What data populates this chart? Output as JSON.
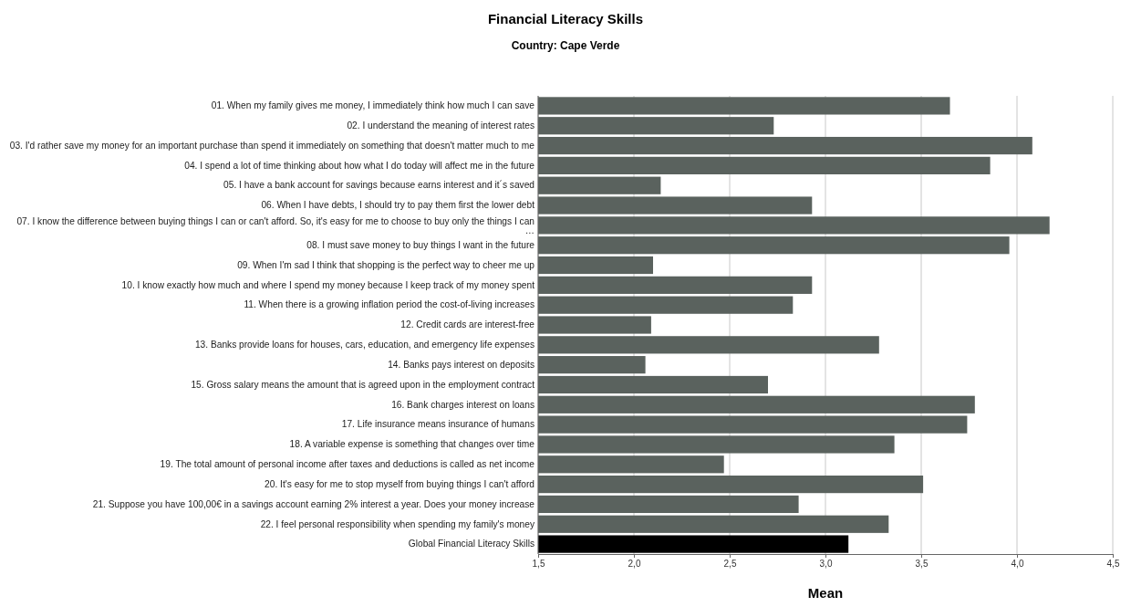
{
  "chart_data": {
    "type": "bar",
    "orientation": "horizontal",
    "title": "Financial Literacy Skills",
    "subtitle": "Country: Cape Verde",
    "xlabel": "Mean",
    "categories": [
      "01. When my family gives me money, I immediately think how much I can save",
      "02. I understand the meaning of interest rates",
      "03. I'd rather save my money for an important purchase than spend it immediately on something that doesn't matter much to me",
      "04. I spend a lot of time thinking about how what I do today will affect me in the future",
      "05. I have a bank account for savings because earns interest and it´s saved",
      "06. When I have debts, I should try to pay them first the lower debt",
      "07. I know the difference between buying things I can or can't afford. So, it's easy for me to choose to buy only the things I can …",
      "08. I must save money to buy things I want in the future",
      "09. When I'm sad I think that shopping is the perfect way to cheer me up",
      "10. I know exactly how much and where I spend my money because I keep track of my money spent",
      "11. When there is a growing inflation period the cost-of-living increases",
      "12. Credit cards are interest-free",
      "13. Banks provide loans for houses, cars, education, and emergency life expenses",
      "14. Banks pays interest on deposits",
      "15. Gross salary means the amount that is agreed upon in the employment contract",
      "16. Bank charges interest on loans",
      "17. Life insurance means insurance of humans",
      "18. A variable expense is something that changes over time",
      "19. The total amount of personal income after taxes and deductions is called as net income",
      "20. It's easy for me to stop myself from buying things I can't afford",
      "21. Suppose you have 100,00€ in a savings account earning 2% interest a year. Does your money increase",
      "22. I feel personal responsibility when spending my family's money",
      "Global Financial Literacy Skills"
    ],
    "values": [
      3.65,
      2.73,
      4.08,
      3.86,
      2.14,
      2.93,
      4.17,
      3.96,
      2.1,
      2.93,
      2.83,
      2.09,
      3.28,
      2.06,
      2.7,
      3.78,
      3.74,
      3.36,
      2.47,
      3.51,
      2.86,
      3.33,
      3.12
    ],
    "colors": [
      "#5a625e",
      "#5a625e",
      "#5a625e",
      "#5a625e",
      "#5a625e",
      "#5a625e",
      "#5a625e",
      "#5a625e",
      "#5a625e",
      "#5a625e",
      "#5a625e",
      "#5a625e",
      "#5a625e",
      "#5a625e",
      "#5a625e",
      "#5a625e",
      "#5a625e",
      "#5a625e",
      "#5a625e",
      "#5a625e",
      "#5a625e",
      "#5a625e",
      "#000000"
    ],
    "xlim": [
      1.5,
      4.5
    ],
    "xticks": [
      {
        "value": 1.5,
        "label": "1,5"
      },
      {
        "value": 2.0,
        "label": "2,0"
      },
      {
        "value": 2.5,
        "label": "2,5"
      },
      {
        "value": 3.0,
        "label": "3,0"
      },
      {
        "value": 3.5,
        "label": "3,5"
      },
      {
        "value": 4.0,
        "label": "4,0"
      },
      {
        "value": 4.5,
        "label": "4,5"
      }
    ],
    "grid": "x"
  }
}
